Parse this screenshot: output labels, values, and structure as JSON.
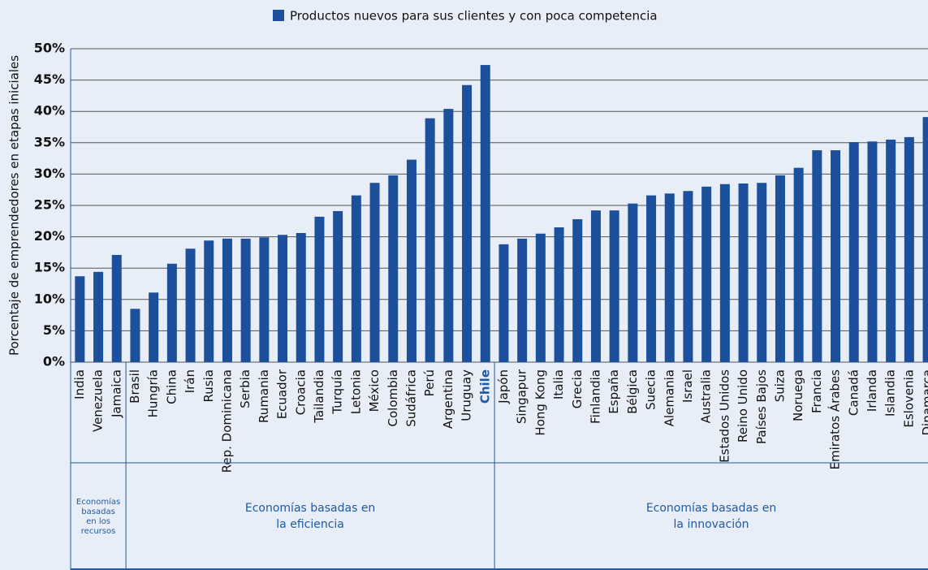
{
  "chart_data": {
    "type": "bar",
    "legend": "Productos nuevos para sus clientes y con poca competencia",
    "ylabel": "Porcentaje de emprendedores en etapas iniciales",
    "categories": [
      "India",
      "Venezuela",
      "Jamaica",
      "Brasil",
      "Hungría",
      "China",
      "Irán",
      "Rusia",
      "Rep. Dominicana",
      "Serbia",
      "Rumania",
      "Ecuador",
      "Croacia",
      "Tailandia",
      "Turquía",
      "Letonia",
      "México",
      "Colombia",
      "Sudáfrica",
      "Perú",
      "Argentina",
      "Uruguay",
      "Chile",
      "Japón",
      "Singapur",
      "Hong Kong",
      "Italia",
      "Grecia",
      "Finlandia",
      "España",
      "Bélgica",
      "Suecia",
      "Alemania",
      "Israel",
      "Australia",
      "Estados Unidos",
      "Reino Unido",
      "Países Bajos",
      "Suiza",
      "Noruega",
      "Francia",
      "Emiratos Árabes",
      "Canadá",
      "Irlanda",
      "Islandia",
      "Eslovenia",
      "Dinamarca"
    ],
    "values": [
      13.7,
      14.4,
      17.1,
      8.5,
      11.1,
      15.7,
      18.1,
      19.4,
      19.7,
      19.7,
      19.9,
      20.3,
      20.6,
      23.2,
      24.1,
      26.6,
      28.6,
      29.8,
      32.3,
      38.9,
      40.4,
      44.2,
      47.4,
      18.8,
      19.7,
      20.5,
      21.5,
      22.8,
      24.2,
      24.2,
      25.3,
      26.6,
      26.9,
      27.3,
      28.0,
      28.4,
      28.5,
      28.6,
      29.8,
      31.0,
      33.8,
      33.8,
      35.1,
      35.2,
      35.5,
      35.9,
      39.1
    ],
    "color": "#1c4f9c",
    "highlight": {
      "category": "Chile",
      "color": "#1f5aa6"
    },
    "ylim": [
      0,
      50
    ],
    "yticks": [
      {
        "value": 0,
        "label": "0%"
      },
      {
        "value": 5,
        "label": "5%"
      },
      {
        "value": 10,
        "label": "10%"
      },
      {
        "value": 15,
        "label": "15%"
      },
      {
        "value": 20,
        "label": "20%"
      },
      {
        "value": 25,
        "label": "25%"
      },
      {
        "value": 30,
        "label": "30%"
      },
      {
        "value": 35,
        "label": "35%"
      },
      {
        "value": 40,
        "label": "40%"
      },
      {
        "value": 45,
        "label": "45%"
      },
      {
        "value": 50,
        "label": "50%"
      }
    ],
    "grid": true,
    "groups": [
      [
        "Economías",
        "basadas",
        "en los",
        "recursos"
      ],
      [
        "Economías basadas en",
        "la eficiencia"
      ],
      [
        "Economías basadas en",
        "la innovación"
      ]
    ]
  }
}
